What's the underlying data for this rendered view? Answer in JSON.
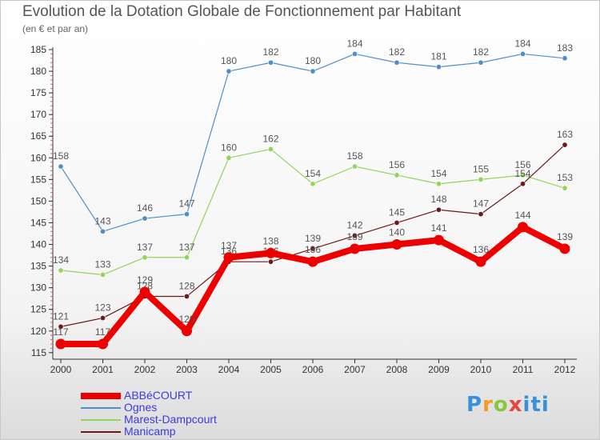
{
  "header": {
    "title": "Evolution de la Dotation Globale de Fonctionnement par Habitant",
    "subtitle": "(en € et par an)"
  },
  "logo": {
    "text": "Proxiti"
  },
  "chart_data": {
    "type": "line",
    "x": [
      "2000",
      "2001",
      "2002",
      "2003",
      "2004",
      "2005",
      "2006",
      "2007",
      "2008",
      "2009",
      "2010",
      "2011",
      "2012"
    ],
    "ylim": [
      115,
      185
    ],
    "yticks": [
      115,
      120,
      125,
      130,
      135,
      140,
      145,
      150,
      155,
      160,
      165,
      170,
      175,
      180,
      185
    ],
    "grid": false,
    "legend_position": "bottom-left",
    "series": [
      {
        "name": "Ognes",
        "color": "#4f8fc9",
        "values": [
          158,
          143,
          146,
          147,
          180,
          182,
          180,
          184,
          182,
          181,
          182,
          184,
          183
        ]
      },
      {
        "name": "Marest-Dampcourt",
        "color": "#8fd65a",
        "values": [
          134,
          133,
          137,
          137,
          160,
          162,
          154,
          158,
          156,
          154,
          155,
          156,
          153
        ]
      },
      {
        "name": "Manicamp",
        "color": "#6b1a1a",
        "values": [
          121,
          123,
          128,
          128,
          136,
          136,
          139,
          142,
          145,
          148,
          147,
          154,
          163
        ]
      },
      {
        "name": "ABBéCOURT",
        "color": "#ee0000",
        "values": [
          117,
          117,
          129,
          120,
          137,
          138,
          136,
          139,
          140,
          141,
          136,
          144,
          139
        ]
      }
    ],
    "legend_order": [
      "ABBéCOURT",
      "Ognes",
      "Marest-Dampcourt",
      "Manicamp"
    ]
  }
}
